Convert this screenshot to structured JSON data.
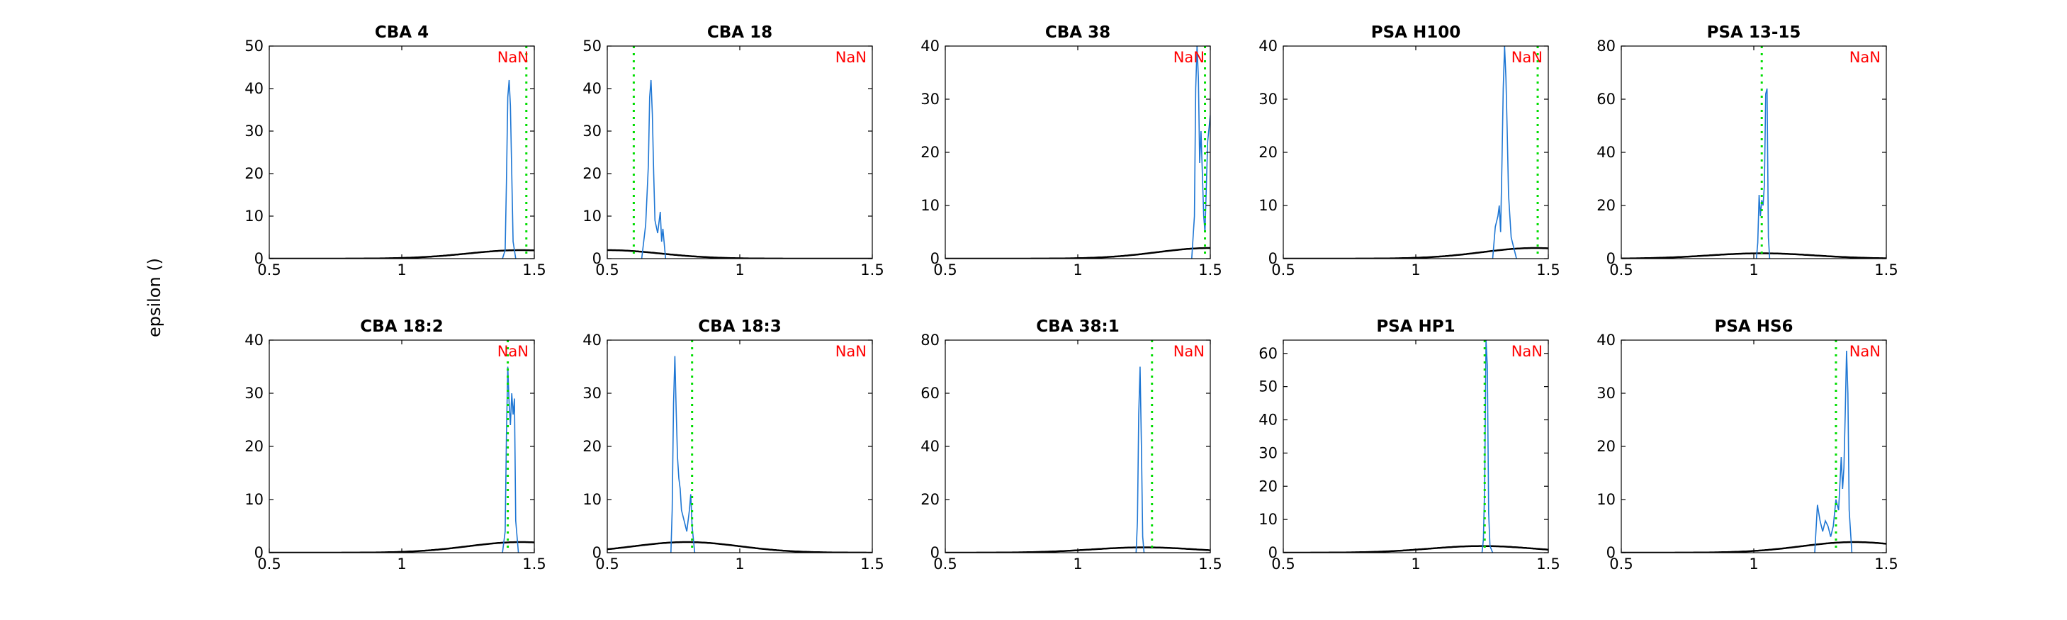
{
  "figure": {
    "ylabel": "epsilon ()"
  },
  "colors": {
    "histogram": "#1f77d4",
    "gaussian": "#000000",
    "marker": "#00dd00",
    "nan_text": "#ff0000"
  },
  "chart_data": [
    {
      "type": "line",
      "title": "CBA 4",
      "xlim": [
        0.5,
        1.5
      ],
      "ylim": [
        0,
        50
      ],
      "xticks": [
        0.5,
        1,
        1.5
      ],
      "yticks": [
        0,
        10,
        20,
        30,
        40,
        50
      ],
      "annotation": "NaN",
      "marker_x": 1.47,
      "series": [
        {
          "kind": "gaussian",
          "mu": 1.45,
          "sigma": 0.2,
          "amp": 2
        },
        {
          "kind": "histogram",
          "x": [
            1.38,
            1.39,
            1.395,
            1.4,
            1.405,
            1.41,
            1.415,
            1.42,
            1.43
          ],
          "y": [
            0,
            2,
            18,
            38,
            42,
            36,
            20,
            4,
            0
          ]
        }
      ]
    },
    {
      "type": "line",
      "title": "CBA 18",
      "xlim": [
        0.5,
        1.5
      ],
      "ylim": [
        0,
        50
      ],
      "xticks": [
        0.5,
        1,
        1.5
      ],
      "yticks": [
        0,
        10,
        20,
        30,
        40,
        50
      ],
      "annotation": "NaN",
      "marker_x": 0.6,
      "series": [
        {
          "kind": "gaussian",
          "mu": 0.5,
          "sigma": 0.2,
          "amp": 2
        },
        {
          "kind": "histogram",
          "x": [
            0.63,
            0.645,
            0.655,
            0.66,
            0.665,
            0.67,
            0.675,
            0.68,
            0.69,
            0.7,
            0.705,
            0.71,
            0.72
          ],
          "y": [
            0,
            8,
            22,
            38,
            42,
            34,
            20,
            9,
            6,
            11,
            4,
            7,
            0
          ]
        }
      ]
    },
    {
      "type": "line",
      "title": "CBA 38",
      "xlim": [
        0.5,
        1.5
      ],
      "ylim": [
        0,
        40
      ],
      "xticks": [
        0.5,
        1,
        1.5
      ],
      "yticks": [
        0,
        10,
        20,
        30,
        40
      ],
      "annotation": "NaN",
      "marker_x": 1.48,
      "series": [
        {
          "kind": "gaussian",
          "mu": 1.5,
          "sigma": 0.2,
          "amp": 2
        },
        {
          "kind": "histogram",
          "x": [
            1.43,
            1.44,
            1.445,
            1.45,
            1.455,
            1.46,
            1.465,
            1.47,
            1.475,
            1.48,
            1.49,
            1.5
          ],
          "y": [
            0,
            8,
            32,
            40,
            34,
            18,
            24,
            16,
            8,
            5,
            22,
            27
          ]
        }
      ]
    },
    {
      "type": "line",
      "title": "PSA H100",
      "xlim": [
        0.5,
        1.5
      ],
      "ylim": [
        0,
        40
      ],
      "xticks": [
        0.5,
        1,
        1.5
      ],
      "yticks": [
        0,
        10,
        20,
        30,
        40
      ],
      "annotation": "NaN",
      "marker_x": 1.46,
      "series": [
        {
          "kind": "gaussian",
          "mu": 1.45,
          "sigma": 0.2,
          "amp": 2
        },
        {
          "kind": "histogram",
          "x": [
            1.29,
            1.3,
            1.31,
            1.315,
            1.32,
            1.325,
            1.33,
            1.335,
            1.34,
            1.345,
            1.35,
            1.36,
            1.38
          ],
          "y": [
            0,
            6,
            8,
            10,
            5,
            18,
            32,
            40,
            34,
            24,
            12,
            4,
            0
          ]
        }
      ]
    },
    {
      "type": "line",
      "title": "PSA 13-15",
      "xlim": [
        0.5,
        1.5
      ],
      "ylim": [
        0,
        80
      ],
      "xticks": [
        0.5,
        1,
        1.5
      ],
      "yticks": [
        0,
        20,
        40,
        60,
        80
      ],
      "annotation": "NaN",
      "marker_x": 1.03,
      "series": [
        {
          "kind": "gaussian",
          "mu": 1.03,
          "sigma": 0.2,
          "amp": 2
        },
        {
          "kind": "histogram",
          "x": [
            1.01,
            1.015,
            1.02,
            1.025,
            1.03,
            1.035,
            1.04,
            1.045,
            1.05,
            1.055,
            1.06
          ],
          "y": [
            0,
            6,
            24,
            16,
            22,
            20,
            28,
            62,
            64,
            8,
            0
          ]
        }
      ]
    },
    {
      "type": "line",
      "title": "CBA 18:2",
      "xlim": [
        0.5,
        1.5
      ],
      "ylim": [
        0,
        40
      ],
      "xticks": [
        0.5,
        1,
        1.5
      ],
      "yticks": [
        0,
        10,
        20,
        30,
        40
      ],
      "annotation": "NaN",
      "marker_x": 1.4,
      "series": [
        {
          "kind": "gaussian",
          "mu": 1.45,
          "sigma": 0.2,
          "amp": 2
        },
        {
          "kind": "histogram",
          "x": [
            1.38,
            1.39,
            1.395,
            1.4,
            1.405,
            1.41,
            1.415,
            1.42,
            1.425,
            1.43,
            1.44
          ],
          "y": [
            0,
            4,
            22,
            35,
            28,
            24,
            30,
            26,
            29,
            6,
            0
          ]
        }
      ]
    },
    {
      "type": "line",
      "title": "CBA 18:3",
      "xlim": [
        0.5,
        1.5
      ],
      "ylim": [
        0,
        40
      ],
      "xticks": [
        0.5,
        1,
        1.5
      ],
      "yticks": [
        0,
        10,
        20,
        30,
        40
      ],
      "annotation": "NaN",
      "marker_x": 0.82,
      "series": [
        {
          "kind": "gaussian",
          "mu": 0.8,
          "sigma": 0.2,
          "amp": 2
        },
        {
          "kind": "histogram",
          "x": [
            0.74,
            0.745,
            0.75,
            0.755,
            0.76,
            0.765,
            0.77,
            0.775,
            0.78,
            0.79,
            0.8,
            0.81,
            0.815,
            0.82,
            0.83
          ],
          "y": [
            0,
            8,
            28,
            37,
            27,
            18,
            14,
            12,
            8,
            6,
            4,
            8,
            11,
            5,
            0
          ]
        }
      ]
    },
    {
      "type": "line",
      "title": "CBA 38:1",
      "xlim": [
        0.5,
        1.5
      ],
      "ylim": [
        0,
        80
      ],
      "xticks": [
        0.5,
        1,
        1.5
      ],
      "yticks": [
        0,
        20,
        40,
        60,
        80
      ],
      "annotation": "NaN",
      "marker_x": 1.28,
      "series": [
        {
          "kind": "gaussian",
          "mu": 1.25,
          "sigma": 0.2,
          "amp": 2
        },
        {
          "kind": "histogram",
          "x": [
            1.22,
            1.225,
            1.23,
            1.235,
            1.24,
            1.245,
            1.25
          ],
          "y": [
            0,
            12,
            52,
            70,
            40,
            6,
            0
          ]
        }
      ]
    },
    {
      "type": "line",
      "title": "PSA HP1",
      "xlim": [
        0.5,
        1.5
      ],
      "ylim": [
        0,
        64
      ],
      "xticks": [
        0.5,
        1,
        1.5
      ],
      "yticks": [
        0,
        10,
        20,
        30,
        40,
        50,
        60
      ],
      "annotation": "NaN",
      "marker_x": 1.26,
      "series": [
        {
          "kind": "gaussian",
          "mu": 1.25,
          "sigma": 0.2,
          "amp": 2
        },
        {
          "kind": "histogram",
          "x": [
            1.25,
            1.255,
            1.26,
            1.265,
            1.27,
            1.275,
            1.28,
            1.29
          ],
          "y": [
            0,
            4,
            20,
            64,
            56,
            12,
            2,
            0
          ]
        }
      ]
    },
    {
      "type": "line",
      "title": "PSA HS6",
      "xlim": [
        0.5,
        1.5
      ],
      "ylim": [
        0,
        40
      ],
      "xticks": [
        0.5,
        1,
        1.5
      ],
      "yticks": [
        0,
        10,
        20,
        30,
        40
      ],
      "annotation": "NaN",
      "marker_x": 1.31,
      "series": [
        {
          "kind": "gaussian",
          "mu": 1.38,
          "sigma": 0.2,
          "amp": 2
        },
        {
          "kind": "histogram",
          "x": [
            1.23,
            1.24,
            1.25,
            1.26,
            1.27,
            1.28,
            1.29,
            1.3,
            1.31,
            1.32,
            1.33,
            1.335,
            1.34,
            1.345,
            1.35,
            1.355,
            1.36,
            1.37
          ],
          "y": [
            0,
            9,
            6,
            4,
            6,
            5,
            3,
            5,
            10,
            8,
            18,
            12,
            16,
            26,
            38,
            30,
            8,
            0
          ]
        }
      ]
    }
  ]
}
